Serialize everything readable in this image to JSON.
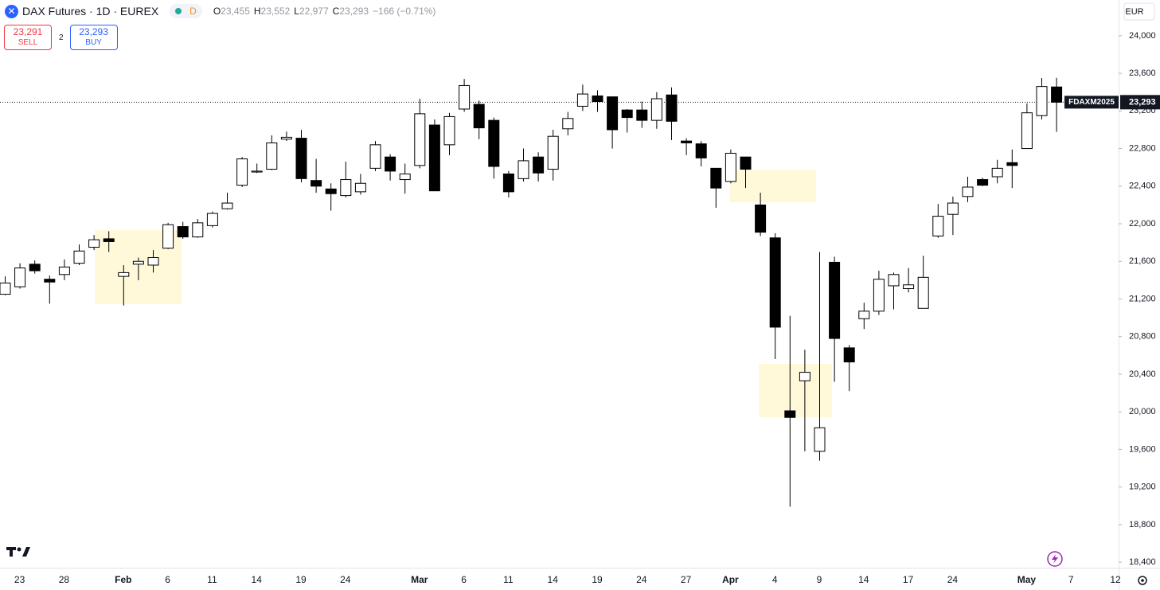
{
  "header": {
    "title": "DAX Futures · 1D · EUREX",
    "interval_badge": "D",
    "ohlc": [
      {
        "key": "O",
        "value": "23,455"
      },
      {
        "key": "H",
        "value": "23,552"
      },
      {
        "key": "L",
        "value": "22,977"
      },
      {
        "key": "C",
        "value": "23,293"
      }
    ],
    "change": "−166 (−0.71%)"
  },
  "trade": {
    "sell_price": "23,291",
    "sell_label": "SELL",
    "spread": "2",
    "buy_price": "23,293",
    "buy_label": "BUY"
  },
  "chart_data": {
    "type": "candlestick",
    "categories": [
      null,
      "23",
      null,
      null,
      "28",
      null,
      null,
      null,
      "Feb",
      null,
      null,
      "6",
      null,
      null,
      "11",
      null,
      null,
      "14",
      null,
      null,
      "19",
      null,
      null,
      "24",
      null,
      null,
      null,
      null,
      "Mar",
      null,
      null,
      "6",
      null,
      null,
      "11",
      null,
      null,
      "14",
      null,
      null,
      "19",
      null,
      null,
      "24",
      null,
      null,
      "27",
      null,
      null,
      "Apr",
      null,
      null,
      "4",
      null,
      null,
      "9",
      null,
      null,
      "14",
      null,
      null,
      "17",
      null,
      null,
      "24",
      null,
      null,
      null,
      null,
      "May",
      null,
      null,
      "7",
      null,
      null,
      "12"
    ],
    "open": [
      21250,
      21330,
      21570,
      21410,
      21460,
      21580,
      21750,
      21840,
      21440,
      21570,
      21560,
      21740,
      21970,
      21860,
      21980,
      22160,
      22410,
      22550,
      22580,
      22900,
      22910,
      22460,
      22370,
      22300,
      22340,
      22590,
      22710,
      22470,
      22620,
      23050,
      22840,
      23220,
      23270,
      23100,
      22530,
      22480,
      22710,
      22580,
      23010,
      23250,
      23360,
      23350,
      23210,
      23210,
      23100,
      23370,
      22880,
      22850,
      22590,
      22450,
      22710,
      22200,
      21850,
      20010,
      20330,
      19580,
      21590,
      20680,
      20990,
      21070,
      21340,
      21310,
      21100,
      21870,
      22100,
      22290,
      22470,
      22500,
      22650,
      22800,
      23150,
      23455,
      null,
      null,
      null,
      null
    ],
    "high": [
      21440,
      21580,
      21610,
      21450,
      21620,
      21780,
      21880,
      21920,
      21560,
      21640,
      21720,
      22010,
      22020,
      22050,
      22130,
      22330,
      22710,
      22640,
      22940,
      22980,
      23000,
      22690,
      22430,
      22660,
      22530,
      22880,
      22740,
      22640,
      23330,
      23110,
      23180,
      23540,
      23310,
      23130,
      22560,
      22800,
      22760,
      23000,
      23190,
      23480,
      23420,
      23350,
      23220,
      23300,
      23400,
      23450,
      22910,
      22880,
      22590,
      22790,
      22710,
      22330,
      21900,
      21020,
      20660,
      21700,
      21650,
      20710,
      21160,
      21500,
      21480,
      21530,
      21660,
      22210,
      22290,
      22500,
      22490,
      22680,
      22790,
      23280,
      23550,
      23552,
      null,
      null,
      null,
      null
    ],
    "low": [
      21240,
      21310,
      21470,
      21150,
      21400,
      21560,
      21720,
      21700,
      21130,
      21400,
      21480,
      21730,
      21840,
      21850,
      21960,
      22150,
      22390,
      22540,
      22570,
      22880,
      22440,
      22330,
      22140,
      22280,
      22310,
      22560,
      22460,
      22320,
      22590,
      22350,
      22730,
      23190,
      22900,
      22480,
      22280,
      22450,
      22450,
      22460,
      22940,
      23200,
      23190,
      22800,
      22970,
      23020,
      23010,
      22890,
      22730,
      22610,
      22170,
      22430,
      22380,
      21870,
      20560,
      18990,
      19580,
      19480,
      20320,
      20220,
      20880,
      21030,
      21090,
      21270,
      21100,
      21850,
      21880,
      22230,
      22400,
      22430,
      22380,
      22800,
      23110,
      22977,
      null,
      null,
      null,
      null
    ],
    "close": [
      21370,
      21530,
      21500,
      21380,
      21540,
      21710,
      21830,
      21810,
      21480,
      21600,
      21640,
      21990,
      21860,
      22010,
      22110,
      22220,
      22690,
      22560,
      22860,
      22920,
      22480,
      22400,
      22320,
      22470,
      22430,
      22840,
      22560,
      22530,
      23170,
      22350,
      23140,
      23470,
      23020,
      22610,
      22340,
      22670,
      22540,
      22930,
      23120,
      23380,
      23300,
      23000,
      23130,
      23100,
      23330,
      23090,
      22860,
      22700,
      22380,
      22750,
      22580,
      21910,
      20900,
      19940,
      20420,
      19830,
      20780,
      20530,
      21070,
      21410,
      21460,
      21350,
      21430,
      22080,
      22220,
      22390,
      22410,
      22590,
      22620,
      23180,
      23460,
      23293,
      null,
      null,
      null,
      null
    ],
    "up_color": "#ffffff",
    "down_color": "#000000",
    "ylim": [
      18350,
      24380
    ],
    "yticks": [
      {
        "value": 18400,
        "label": "18,400"
      },
      {
        "value": 18800,
        "label": "18,800"
      },
      {
        "value": 19200,
        "label": "19,200"
      },
      {
        "value": 19600,
        "label": "19,600"
      },
      {
        "value": 20000,
        "label": "20,000"
      },
      {
        "value": 20400,
        "label": "20,400"
      },
      {
        "value": 20800,
        "label": "20,800"
      },
      {
        "value": 21200,
        "label": "21,200"
      },
      {
        "value": 21600,
        "label": "21,600"
      },
      {
        "value": 22000,
        "label": "22,000"
      },
      {
        "value": 22400,
        "label": "22,400"
      },
      {
        "value": 22800,
        "label": "22,800"
      },
      {
        "value": 23200,
        "label": "23,200"
      },
      {
        "value": 23600,
        "label": "23,600"
      },
      {
        "value": 24000,
        "label": "24,000"
      }
    ],
    "currency": "EUR",
    "symbol_label": "FDAXM2025",
    "last_price": {
      "value": 23293,
      "label": "23,293"
    }
  }
}
